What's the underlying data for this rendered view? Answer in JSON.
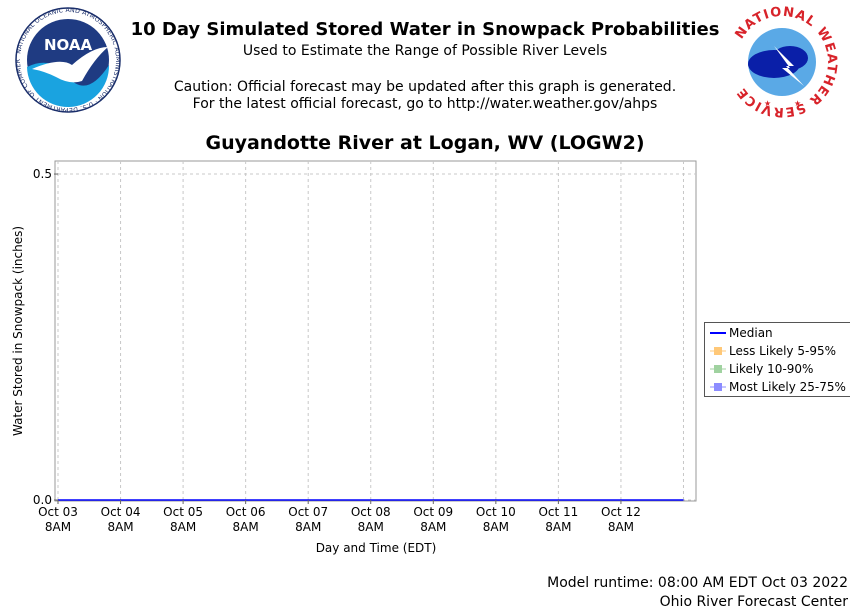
{
  "header": {
    "title": "10 Day Simulated Stored Water in Snowpack Probabilities",
    "subtitle": "Used to Estimate the Range of Possible River Levels",
    "caution_line1": "Caution: Official forecast may be updated after this graph is generated.",
    "caution_line2": "For the latest official forecast, go to http://water.weather.gov/ahps"
  },
  "logos": {
    "noaa": {
      "text": "NOAA",
      "ring_text": "NATIONAL OCEANIC AND ATMOSPHERIC ADMINISTRATION · U.S. DEPARTMENT OF COMMERCE"
    },
    "nws": {
      "ring_text": "NATIONAL WEATHER SERVICE"
    }
  },
  "colors": {
    "median": "#0000ff",
    "less_likely": "#ffc878",
    "likely": "#a0d2a0",
    "most_likely": "#8c8cff",
    "grid": "#c8c8c8"
  },
  "chart_data": {
    "type": "line",
    "title": "Guyandotte River at Logan, WV (LOGW2)",
    "xlabel": "Day and Time (EDT)",
    "ylabel": "Water Stored in Snowpack (inches)",
    "ylim": [
      0.0,
      0.52
    ],
    "yticks": [
      {
        "value": 0.0,
        "label": "0.0"
      },
      {
        "value": 0.5,
        "label": "0.5"
      }
    ],
    "xticks": [
      {
        "line1": "Oct 03",
        "line2": "8AM"
      },
      {
        "line1": "Oct 04",
        "line2": "8AM"
      },
      {
        "line1": "Oct 05",
        "line2": "8AM"
      },
      {
        "line1": "Oct 06",
        "line2": "8AM"
      },
      {
        "line1": "Oct 07",
        "line2": "8AM"
      },
      {
        "line1": "Oct 08",
        "line2": "8AM"
      },
      {
        "line1": "Oct 09",
        "line2": "8AM"
      },
      {
        "line1": "Oct 10",
        "line2": "8AM"
      },
      {
        "line1": "Oct 11",
        "line2": "8AM"
      },
      {
        "line1": "Oct 12",
        "line2": "8AM"
      }
    ],
    "x_range_days": [
      0,
      10.2
    ],
    "grid": true,
    "legend_position": "right",
    "series": [
      {
        "name": "Median",
        "kind": "line",
        "x": [
          0,
          10
        ],
        "values": [
          0.0,
          0.0
        ]
      },
      {
        "name": "Less Likely 5-95%",
        "kind": "band",
        "x": [
          0,
          10
        ],
        "values": [
          0.0,
          0.0
        ]
      },
      {
        "name": "Likely 10-90%",
        "kind": "band",
        "x": [
          0,
          10
        ],
        "values": [
          0.0,
          0.0
        ]
      },
      {
        "name": "Most Likely 25-75%",
        "kind": "band",
        "x": [
          0,
          10
        ],
        "values": [
          0.0,
          0.0
        ]
      }
    ]
  },
  "footer": {
    "runtime": "Model runtime: 08:00 AM EDT Oct 03 2022",
    "center": "Ohio River Forecast Center"
  }
}
